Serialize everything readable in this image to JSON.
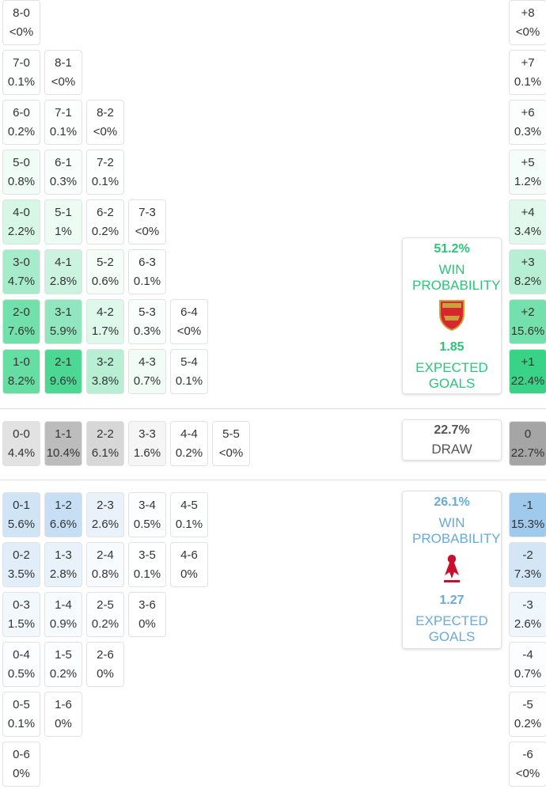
{
  "home": {
    "rows": [
      [
        {
          "score": "8-0",
          "prob": "<0%"
        }
      ],
      [
        {
          "score": "7-0",
          "prob": "0.1%"
        },
        {
          "score": "8-1",
          "prob": "<0%"
        }
      ],
      [
        {
          "score": "6-0",
          "prob": "0.2%"
        },
        {
          "score": "7-1",
          "prob": "0.1%"
        },
        {
          "score": "8-2",
          "prob": "<0%"
        }
      ],
      [
        {
          "score": "5-0",
          "prob": "0.8%"
        },
        {
          "score": "6-1",
          "prob": "0.3%"
        },
        {
          "score": "7-2",
          "prob": "0.1%"
        }
      ],
      [
        {
          "score": "4-0",
          "prob": "2.2%"
        },
        {
          "score": "5-1",
          "prob": "1%"
        },
        {
          "score": "6-2",
          "prob": "0.2%"
        },
        {
          "score": "7-3",
          "prob": "<0%"
        }
      ],
      [
        {
          "score": "3-0",
          "prob": "4.7%"
        },
        {
          "score": "4-1",
          "prob": "2.8%"
        },
        {
          "score": "5-2",
          "prob": "0.6%"
        },
        {
          "score": "6-3",
          "prob": "0.1%"
        }
      ],
      [
        {
          "score": "2-0",
          "prob": "7.6%"
        },
        {
          "score": "3-1",
          "prob": "5.9%"
        },
        {
          "score": "4-2",
          "prob": "1.7%"
        },
        {
          "score": "5-3",
          "prob": "0.3%"
        },
        {
          "score": "6-4",
          "prob": "<0%"
        }
      ],
      [
        {
          "score": "1-0",
          "prob": "8.2%"
        },
        {
          "score": "2-1",
          "prob": "9.6%"
        },
        {
          "score": "3-2",
          "prob": "3.8%"
        },
        {
          "score": "4-3",
          "prob": "0.7%"
        },
        {
          "score": "5-4",
          "prob": "0.1%"
        }
      ]
    ],
    "margins": [
      {
        "label": "+8",
        "prob": "<0%"
      },
      {
        "label": "+7",
        "prob": "0.1%"
      },
      {
        "label": "+6",
        "prob": "0.3%"
      },
      {
        "label": "+5",
        "prob": "1.2%"
      },
      {
        "label": "+4",
        "prob": "3.4%"
      },
      {
        "label": "+3",
        "prob": "8.2%"
      },
      {
        "label": "+2",
        "prob": "15.6%"
      },
      {
        "label": "+1",
        "prob": "22.4%"
      }
    ],
    "summary": {
      "win_prob": "51.2%",
      "win_label": "WIN PROBABILITY",
      "xg": "1.85",
      "xg_label": "EXPECTED GOALS"
    }
  },
  "draw": {
    "rows": [
      [
        {
          "score": "0-0",
          "prob": "4.4%"
        },
        {
          "score": "1-1",
          "prob": "10.4%"
        },
        {
          "score": "2-2",
          "prob": "6.1%"
        },
        {
          "score": "3-3",
          "prob": "1.6%"
        },
        {
          "score": "4-4",
          "prob": "0.2%"
        },
        {
          "score": "5-5",
          "prob": "<0%"
        }
      ]
    ],
    "margins": [
      {
        "label": "0",
        "prob": "22.7%"
      }
    ],
    "summary": {
      "prob": "22.7%",
      "label": "DRAW"
    }
  },
  "away": {
    "rows": [
      [
        {
          "score": "0-1",
          "prob": "5.6%"
        },
        {
          "score": "1-2",
          "prob": "6.6%"
        },
        {
          "score": "2-3",
          "prob": "2.6%"
        },
        {
          "score": "3-4",
          "prob": "0.5%"
        },
        {
          "score": "4-5",
          "prob": "0.1%"
        }
      ],
      [
        {
          "score": "0-2",
          "prob": "3.5%"
        },
        {
          "score": "1-3",
          "prob": "2.8%"
        },
        {
          "score": "2-4",
          "prob": "0.8%"
        },
        {
          "score": "3-5",
          "prob": "0.1%"
        },
        {
          "score": "4-6",
          "prob": "0%"
        }
      ],
      [
        {
          "score": "0-3",
          "prob": "1.5%"
        },
        {
          "score": "1-4",
          "prob": "0.9%"
        },
        {
          "score": "2-5",
          "prob": "0.2%"
        },
        {
          "score": "3-6",
          "prob": "0%"
        }
      ],
      [
        {
          "score": "0-4",
          "prob": "0.5%"
        },
        {
          "score": "1-5",
          "prob": "0.2%"
        },
        {
          "score": "2-6",
          "prob": "0%"
        }
      ],
      [
        {
          "score": "0-5",
          "prob": "0.1%"
        },
        {
          "score": "1-6",
          "prob": "0%"
        }
      ],
      [
        {
          "score": "0-6",
          "prob": "0%"
        }
      ]
    ],
    "margins": [
      {
        "label": "-1",
        "prob": "15.3%"
      },
      {
        "label": "-2",
        "prob": "7.3%"
      },
      {
        "label": "-3",
        "prob": "2.6%"
      },
      {
        "label": "-4",
        "prob": "0.7%"
      },
      {
        "label": "-5",
        "prob": "0.2%"
      },
      {
        "label": "-6",
        "prob": "<0%"
      }
    ],
    "summary": {
      "win_prob": "26.1%",
      "win_label": "WIN PROBABILITY",
      "xg": "1.27",
      "xg_label": "EXPECTED GOALS"
    }
  }
}
